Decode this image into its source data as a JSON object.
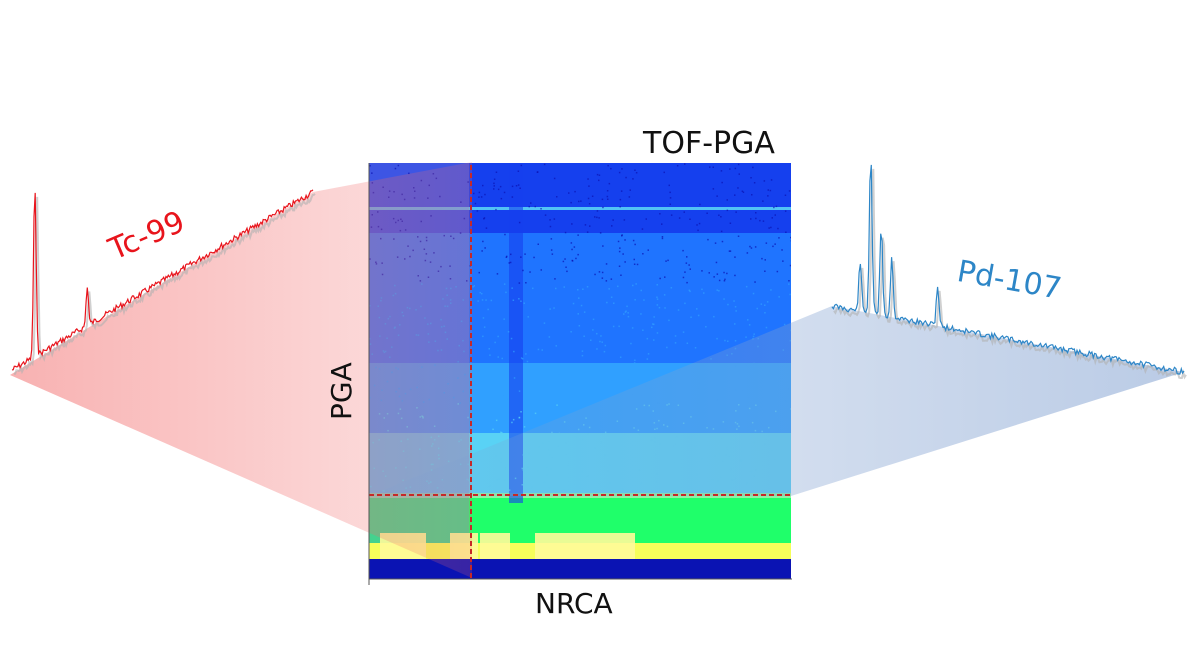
{
  "figure": {
    "title": "TOF-PGA",
    "x_label": "NRCA",
    "y_label": "PGA"
  },
  "spectra": {
    "left": {
      "label": "Tc-99",
      "color": "#e8141c",
      "fill_color": "#f26b6b"
    },
    "right": {
      "label": "Pd-107",
      "color": "#2d86c7",
      "fill_color": "#7f9fd0"
    }
  },
  "heatmap": {
    "colormap": [
      "#0a13b3",
      "#1540ee",
      "#1f74ff",
      "#30a0ff",
      "#59d2f5",
      "#8ff0a6",
      "#1fff6a",
      "#f6ff5a",
      "#fffb9a"
    ],
    "selection_line_color": "#c62828"
  }
}
